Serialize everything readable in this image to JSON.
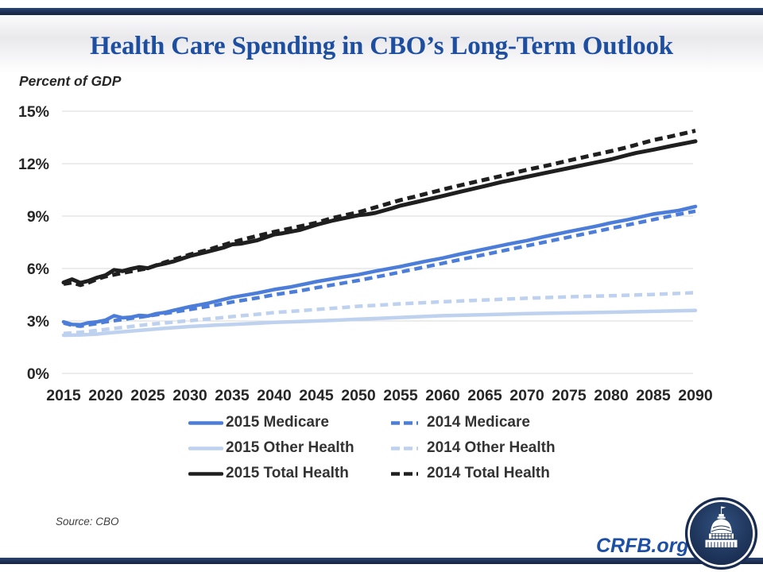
{
  "header": {
    "title": "Health Care Spending in CBO’s Long-Term Outlook"
  },
  "source_note": "Source: CBO",
  "branding": {
    "site": "CRFB.org"
  },
  "colors": {
    "accent_navy": "#1a2b4e",
    "title_blue": "#1e4ea0",
    "wordmark_blue": "#1d4fa4",
    "medicare_blue": "#4c7dd9",
    "other_health_blue": "#bed1ef",
    "total_health_black": "#1f1f1f",
    "gridline_gray": "#d9d9d9",
    "tick_text": "#262626"
  },
  "chart_data": {
    "type": "line",
    "title": "Health Care Spending in CBO’s Long-Term Outlook",
    "xlabel": "",
    "ylabel": "Percent of GDP",
    "ylim": [
      0,
      15
    ],
    "yticks": [
      0,
      3,
      6,
      9,
      12,
      15
    ],
    "ytick_labels": [
      "0%",
      "3%",
      "6%",
      "9%",
      "12%",
      "15%"
    ],
    "xlim": [
      2015,
      2090
    ],
    "xticks": [
      2015,
      2020,
      2025,
      2030,
      2035,
      2040,
      2045,
      2050,
      2055,
      2060,
      2065,
      2070,
      2075,
      2080,
      2085,
      2090
    ],
    "grid": "horizontal",
    "legend_position": "bottom",
    "series": [
      {
        "name": "2015 Medicare",
        "color": "#4c7dd9",
        "style": "solid",
        "width": 4.5,
        "points": [
          [
            2015,
            2.95
          ],
          [
            2016,
            2.8
          ],
          [
            2017,
            2.78
          ],
          [
            2018,
            2.9
          ],
          [
            2019,
            2.95
          ],
          [
            2020,
            3.05
          ],
          [
            2021,
            3.3
          ],
          [
            2022,
            3.18
          ],
          [
            2023,
            3.22
          ],
          [
            2024,
            3.32
          ],
          [
            2025,
            3.28
          ],
          [
            2026,
            3.42
          ],
          [
            2027,
            3.48
          ],
          [
            2028,
            3.6
          ],
          [
            2030,
            3.82
          ],
          [
            2032,
            4.0
          ],
          [
            2035,
            4.35
          ],
          [
            2038,
            4.6
          ],
          [
            2040,
            4.8
          ],
          [
            2042,
            4.95
          ],
          [
            2045,
            5.25
          ],
          [
            2048,
            5.5
          ],
          [
            2050,
            5.65
          ],
          [
            2052,
            5.85
          ],
          [
            2055,
            6.12
          ],
          [
            2058,
            6.42
          ],
          [
            2060,
            6.6
          ],
          [
            2062,
            6.82
          ],
          [
            2065,
            7.12
          ],
          [
            2068,
            7.42
          ],
          [
            2070,
            7.6
          ],
          [
            2072,
            7.82
          ],
          [
            2075,
            8.12
          ],
          [
            2078,
            8.4
          ],
          [
            2080,
            8.62
          ],
          [
            2082,
            8.8
          ],
          [
            2085,
            9.12
          ],
          [
            2087,
            9.25
          ],
          [
            2088,
            9.32
          ],
          [
            2090,
            9.55
          ]
        ]
      },
      {
        "name": "2014 Medicare",
        "color": "#4c7dd9",
        "style": "dashed",
        "width": 4.5,
        "points": [
          [
            2015,
            2.88
          ],
          [
            2016,
            2.75
          ],
          [
            2017,
            2.7
          ],
          [
            2018,
            2.78
          ],
          [
            2019,
            2.85
          ],
          [
            2020,
            2.95
          ],
          [
            2022,
            3.08
          ],
          [
            2025,
            3.28
          ],
          [
            2028,
            3.5
          ],
          [
            2030,
            3.66
          ],
          [
            2033,
            3.9
          ],
          [
            2035,
            4.08
          ],
          [
            2038,
            4.32
          ],
          [
            2040,
            4.5
          ],
          [
            2043,
            4.72
          ],
          [
            2045,
            4.9
          ],
          [
            2048,
            5.15
          ],
          [
            2050,
            5.32
          ],
          [
            2053,
            5.6
          ],
          [
            2055,
            5.8
          ],
          [
            2058,
            6.1
          ],
          [
            2060,
            6.3
          ],
          [
            2063,
            6.6
          ],
          [
            2065,
            6.8
          ],
          [
            2068,
            7.1
          ],
          [
            2070,
            7.3
          ],
          [
            2073,
            7.6
          ],
          [
            2075,
            7.8
          ],
          [
            2078,
            8.1
          ],
          [
            2080,
            8.3
          ],
          [
            2083,
            8.6
          ],
          [
            2085,
            8.8
          ],
          [
            2088,
            9.1
          ],
          [
            2090,
            9.28
          ]
        ]
      },
      {
        "name": "2015 Other Health",
        "color": "#bed1ef",
        "style": "solid",
        "width": 4.5,
        "points": [
          [
            2015,
            2.18
          ],
          [
            2017,
            2.2
          ],
          [
            2019,
            2.25
          ],
          [
            2020,
            2.3
          ],
          [
            2022,
            2.38
          ],
          [
            2025,
            2.5
          ],
          [
            2027,
            2.58
          ],
          [
            2030,
            2.68
          ],
          [
            2033,
            2.76
          ],
          [
            2035,
            2.8
          ],
          [
            2038,
            2.87
          ],
          [
            2040,
            2.92
          ],
          [
            2043,
            2.97
          ],
          [
            2045,
            3.0
          ],
          [
            2048,
            3.06
          ],
          [
            2050,
            3.1
          ],
          [
            2053,
            3.16
          ],
          [
            2055,
            3.2
          ],
          [
            2058,
            3.26
          ],
          [
            2060,
            3.3
          ],
          [
            2065,
            3.36
          ],
          [
            2070,
            3.42
          ],
          [
            2075,
            3.46
          ],
          [
            2080,
            3.5
          ],
          [
            2085,
            3.55
          ],
          [
            2090,
            3.6
          ]
        ]
      },
      {
        "name": "2014 Other Health",
        "color": "#bed1ef",
        "style": "dashed",
        "width": 4.5,
        "points": [
          [
            2015,
            2.28
          ],
          [
            2017,
            2.35
          ],
          [
            2020,
            2.52
          ],
          [
            2023,
            2.68
          ],
          [
            2025,
            2.8
          ],
          [
            2028,
            2.93
          ],
          [
            2030,
            3.02
          ],
          [
            2033,
            3.15
          ],
          [
            2035,
            3.25
          ],
          [
            2038,
            3.38
          ],
          [
            2040,
            3.48
          ],
          [
            2043,
            3.58
          ],
          [
            2045,
            3.66
          ],
          [
            2048,
            3.76
          ],
          [
            2050,
            3.84
          ],
          [
            2053,
            3.92
          ],
          [
            2055,
            3.98
          ],
          [
            2058,
            4.05
          ],
          [
            2060,
            4.1
          ],
          [
            2065,
            4.2
          ],
          [
            2070,
            4.3
          ],
          [
            2075,
            4.38
          ],
          [
            2080,
            4.44
          ],
          [
            2085,
            4.52
          ],
          [
            2090,
            4.62
          ]
        ]
      },
      {
        "name": "2015 Total Health",
        "color": "#1f1f1f",
        "style": "solid",
        "width": 5,
        "points": [
          [
            2015,
            5.2
          ],
          [
            2016,
            5.38
          ],
          [
            2017,
            5.18
          ],
          [
            2018,
            5.3
          ],
          [
            2019,
            5.48
          ],
          [
            2020,
            5.62
          ],
          [
            2021,
            5.92
          ],
          [
            2022,
            5.85
          ],
          [
            2023,
            5.98
          ],
          [
            2024,
            6.08
          ],
          [
            2025,
            6.02
          ],
          [
            2026,
            6.18
          ],
          [
            2027,
            6.28
          ],
          [
            2028,
            6.4
          ],
          [
            2030,
            6.72
          ],
          [
            2032,
            6.95
          ],
          [
            2034,
            7.2
          ],
          [
            2035,
            7.38
          ],
          [
            2036,
            7.42
          ],
          [
            2038,
            7.62
          ],
          [
            2040,
            7.95
          ],
          [
            2041,
            8.02
          ],
          [
            2043,
            8.2
          ],
          [
            2045,
            8.5
          ],
          [
            2047,
            8.75
          ],
          [
            2048,
            8.85
          ],
          [
            2050,
            9.05
          ],
          [
            2051,
            9.1
          ],
          [
            2052,
            9.18
          ],
          [
            2054,
            9.45
          ],
          [
            2055,
            9.6
          ],
          [
            2057,
            9.82
          ],
          [
            2060,
            10.15
          ],
          [
            2062,
            10.38
          ],
          [
            2065,
            10.72
          ],
          [
            2067,
            10.95
          ],
          [
            2070,
            11.25
          ],
          [
            2072,
            11.45
          ],
          [
            2075,
            11.75
          ],
          [
            2077,
            11.95
          ],
          [
            2080,
            12.25
          ],
          [
            2082,
            12.5
          ],
          [
            2083,
            12.62
          ],
          [
            2085,
            12.8
          ],
          [
            2087,
            13.0
          ],
          [
            2090,
            13.28
          ]
        ]
      },
      {
        "name": "2014 Total Health",
        "color": "#1f1f1f",
        "style": "dashed",
        "width": 5,
        "points": [
          [
            2015,
            5.12
          ],
          [
            2016,
            5.2
          ],
          [
            2017,
            5.05
          ],
          [
            2018,
            5.2
          ],
          [
            2019,
            5.4
          ],
          [
            2020,
            5.55
          ],
          [
            2022,
            5.75
          ],
          [
            2025,
            6.02
          ],
          [
            2027,
            6.35
          ],
          [
            2030,
            6.8
          ],
          [
            2032,
            7.05
          ],
          [
            2035,
            7.5
          ],
          [
            2037,
            7.75
          ],
          [
            2040,
            8.1
          ],
          [
            2042,
            8.3
          ],
          [
            2045,
            8.62
          ],
          [
            2047,
            8.9
          ],
          [
            2050,
            9.22
          ],
          [
            2052,
            9.5
          ],
          [
            2055,
            9.92
          ],
          [
            2057,
            10.15
          ],
          [
            2060,
            10.52
          ],
          [
            2062,
            10.75
          ],
          [
            2065,
            11.08
          ],
          [
            2067,
            11.3
          ],
          [
            2070,
            11.65
          ],
          [
            2072,
            11.85
          ],
          [
            2075,
            12.18
          ],
          [
            2077,
            12.4
          ],
          [
            2080,
            12.72
          ],
          [
            2082,
            12.95
          ],
          [
            2085,
            13.35
          ],
          [
            2087,
            13.55
          ],
          [
            2090,
            13.88
          ]
        ]
      }
    ]
  }
}
